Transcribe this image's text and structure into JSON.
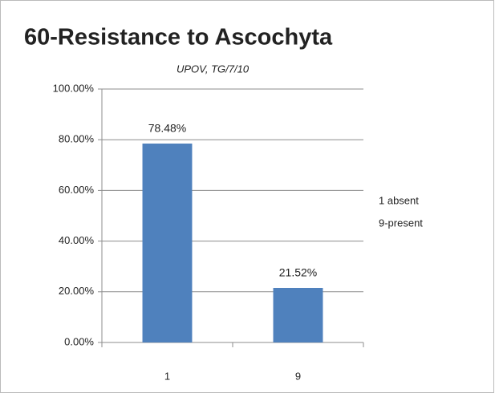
{
  "chart_data": {
    "type": "bar",
    "title": "60-Resistance to Ascochyta",
    "subtitle": "UPOV, TG/7/10",
    "categories": [
      "1",
      "9"
    ],
    "values": [
      78.48,
      21.52
    ],
    "value_labels": [
      "78.48%",
      "21.52%"
    ],
    "color": "#4f81bd",
    "ylim": [
      0,
      100
    ],
    "yticks": [
      {
        "value": 0,
        "label": "0.00%"
      },
      {
        "value": 20,
        "label": "20.00%"
      },
      {
        "value": 40,
        "label": "40.00%"
      },
      {
        "value": 60,
        "label": "60.00%"
      },
      {
        "value": 80,
        "label": "80.00%"
      },
      {
        "value": 100,
        "label": "100.00%"
      }
    ],
    "grid": true,
    "annotations": [
      "1 absent",
      "9-present"
    ]
  }
}
